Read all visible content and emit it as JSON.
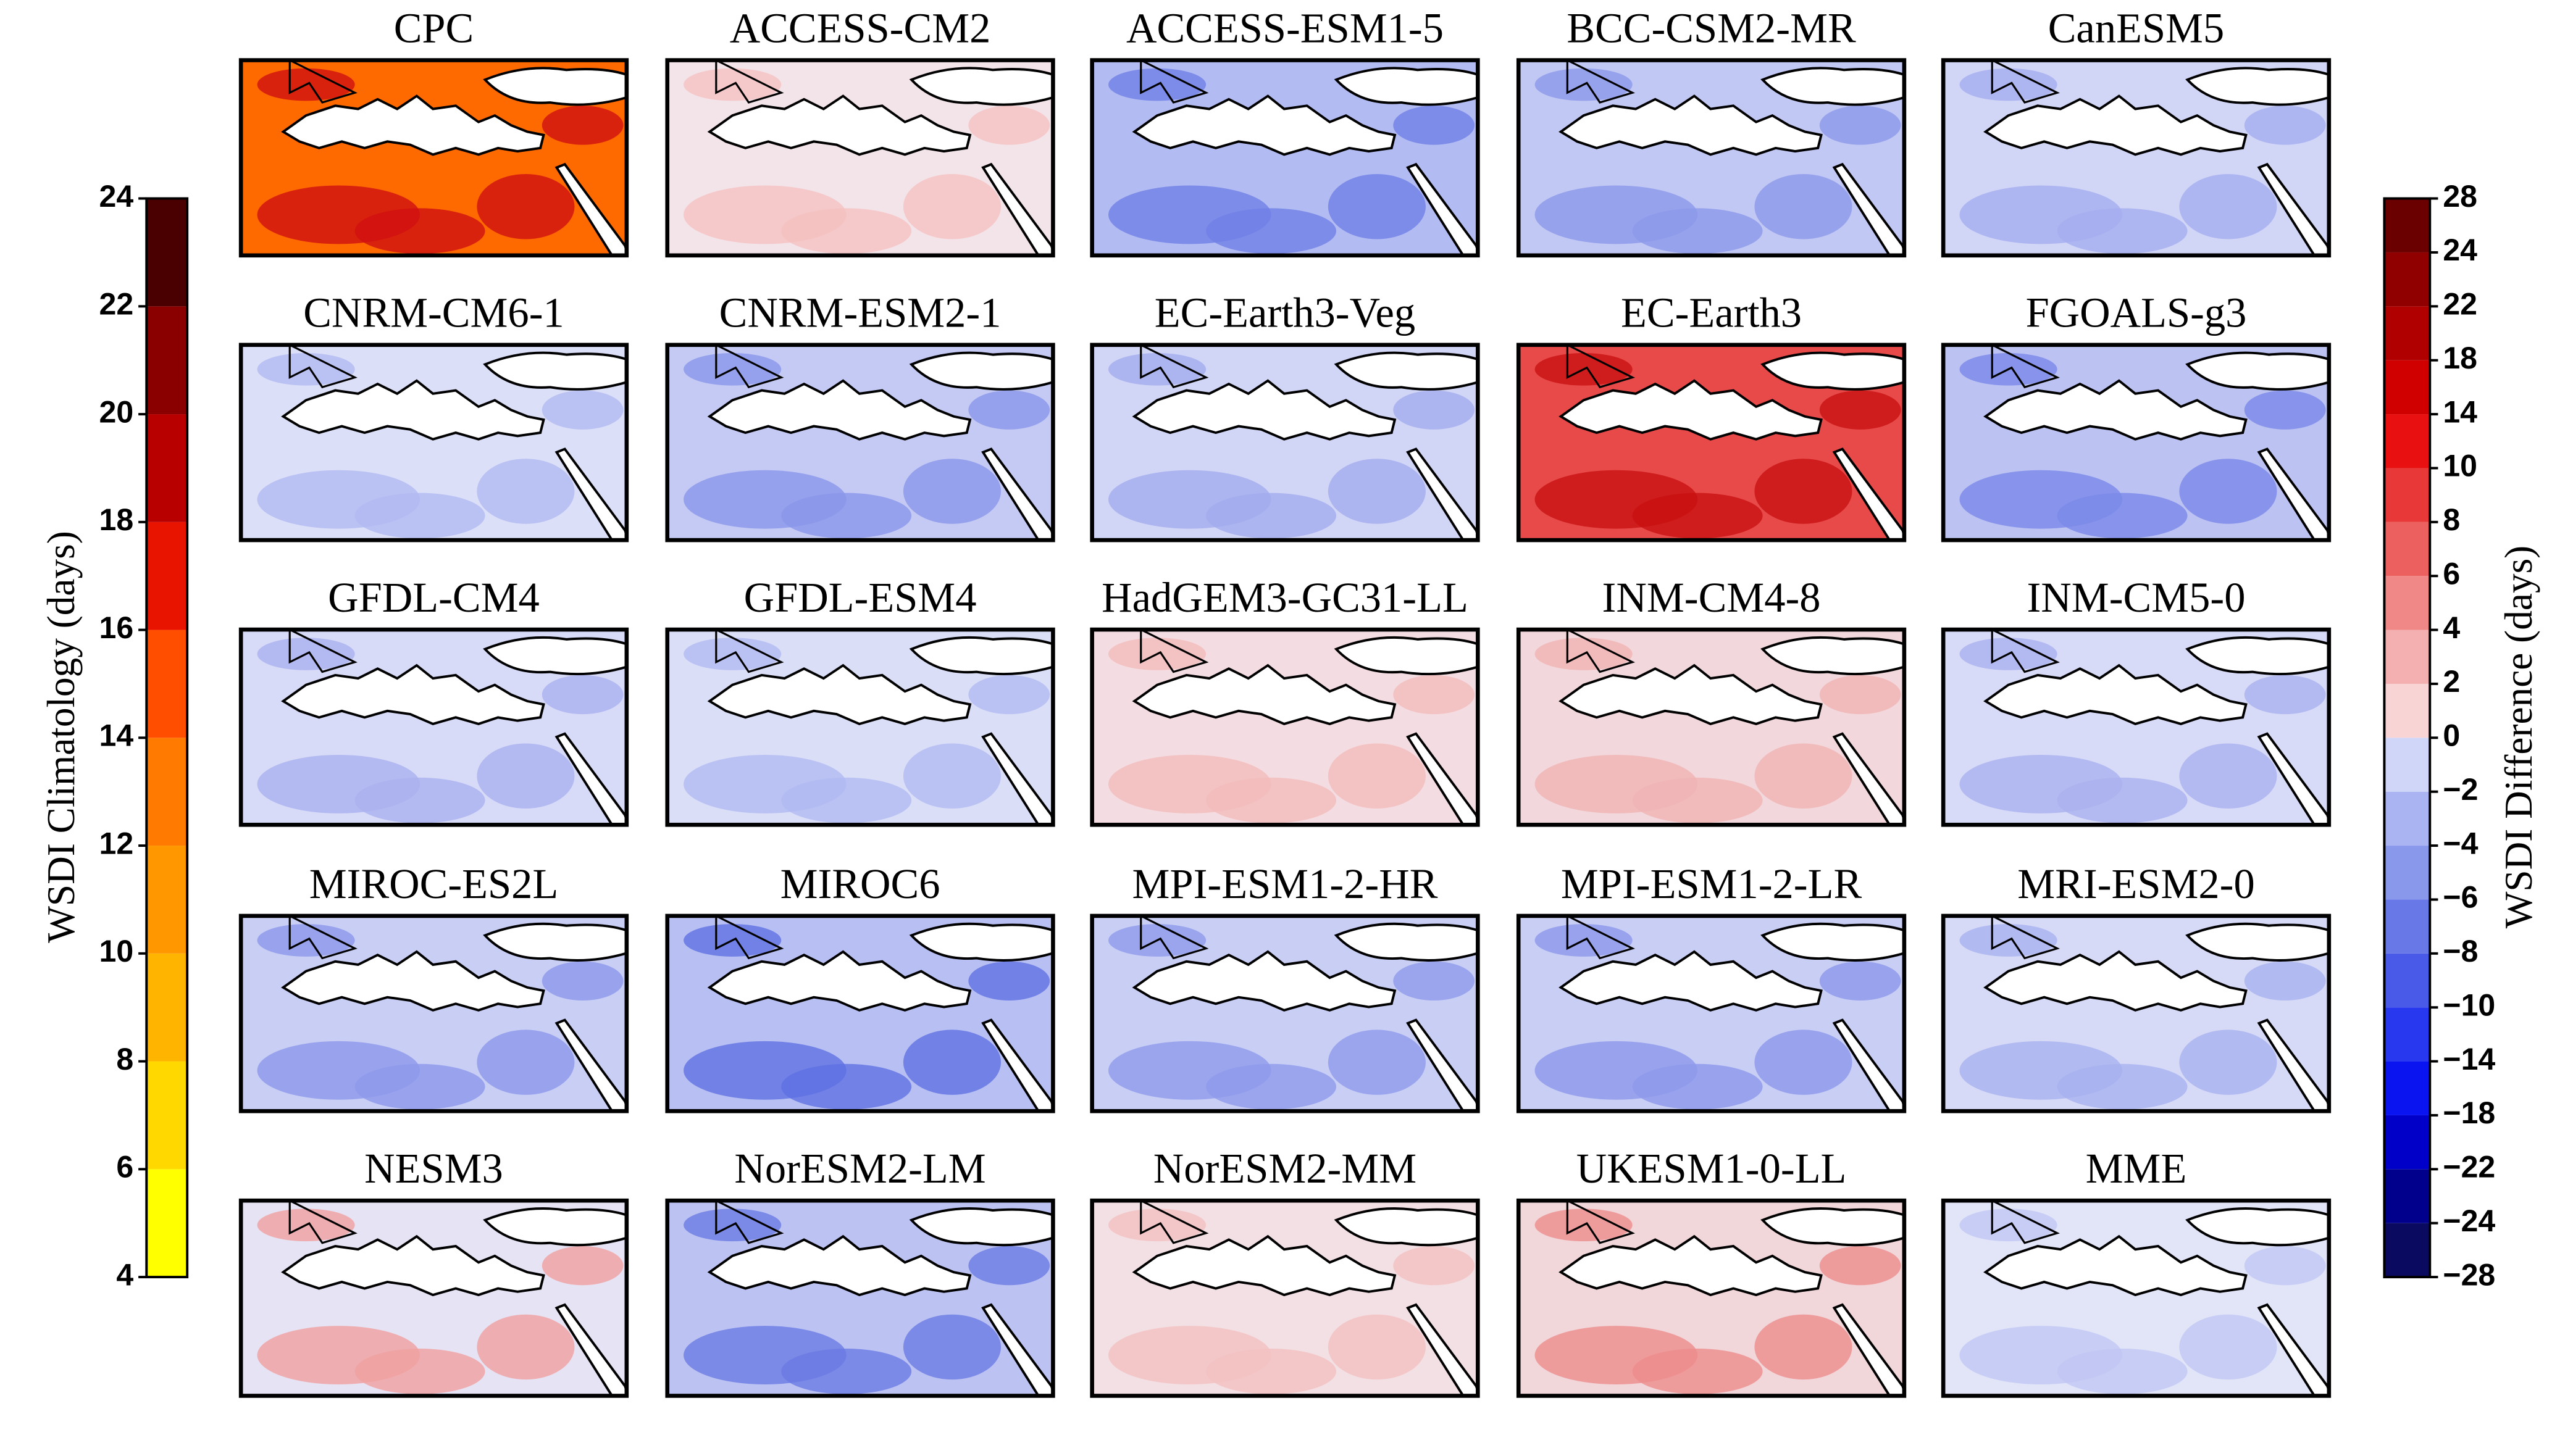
{
  "panels": [
    {
      "title": "CPC",
      "color": "#ff6a00",
      "accent": "#d01010"
    },
    {
      "title": "ACCESS-CM2",
      "color": "#f3e4ea",
      "accent": "#f5c0c0"
    },
    {
      "title": "ACCESS-ESM1-5",
      "color": "#b3bcf2",
      "accent": "#6f7fe6"
    },
    {
      "title": "BCC-CSM2-MR",
      "color": "#c2c8f4",
      "accent": "#8c98ea"
    },
    {
      "title": "CanESM5",
      "color": "#d2d6f6",
      "accent": "#a5aef0"
    },
    {
      "title": "CNRM-CM6-1",
      "color": "#dcdff8",
      "accent": "#b1b9f1"
    },
    {
      "title": "CNRM-ESM2-1",
      "color": "#c4caf4",
      "accent": "#8a96ea"
    },
    {
      "title": "EC-Earth3-Veg",
      "color": "#d2d6f6",
      "accent": "#a3adee"
    },
    {
      "title": "EC-Earth3",
      "color": "#e84a4a",
      "accent": "#c81010"
    },
    {
      "title": "FGOALS-g3",
      "color": "#bcc3f3",
      "accent": "#7a88e8"
    },
    {
      "title": "GFDL-CM4",
      "color": "#d8dbf7",
      "accent": "#aab2ef"
    },
    {
      "title": "GFDL-ESM4",
      "color": "#dadef7",
      "accent": "#b2baf1"
    },
    {
      "title": "HadGEM3-GC31-LL",
      "color": "#f4dde2",
      "accent": "#f2bcbc"
    },
    {
      "title": "INM-CM4-8",
      "color": "#f2d8dc",
      "accent": "#f0b4b4"
    },
    {
      "title": "INM-CM5-0",
      "color": "#d8dbf7",
      "accent": "#aab2ef"
    },
    {
      "title": "MIROC-ES2L",
      "color": "#c9cef5",
      "accent": "#8d99eb"
    },
    {
      "title": "MIROC6",
      "color": "#b8c0f3",
      "accent": "#5f70e2"
    },
    {
      "title": "MPI-ESM1-2-HR",
      "color": "#c9cef5",
      "accent": "#8f9beb"
    },
    {
      "title": "MPI-ESM1-2-LR",
      "color": "#c9cef5",
      "accent": "#8d99eb"
    },
    {
      "title": "MRI-ESM2-0",
      "color": "#d6daf7",
      "accent": "#a8b1ef"
    },
    {
      "title": "NESM3",
      "color": "#e6e4f4",
      "accent": "#f0a0a0"
    },
    {
      "title": "NorESM2-LM",
      "color": "#bcc3f3",
      "accent": "#6a7ae4"
    },
    {
      "title": "NorESM2-MM",
      "color": "#f3e0e4",
      "accent": "#f2c0c0"
    },
    {
      "title": "UKESM1-0-LL",
      "color": "#f1d6da",
      "accent": "#ee8c8c"
    },
    {
      "title": "MME",
      "color": "#e2e4f8",
      "accent": "#c1c7f3"
    }
  ],
  "left_colorbar": {
    "label": "WSDI Climatology (days)",
    "lim": [
      4,
      24
    ],
    "ticks": [
      4,
      6,
      8,
      10,
      12,
      14,
      16,
      18,
      20,
      22,
      24
    ],
    "colors": [
      "#ffff00",
      "#ffd800",
      "#ffb400",
      "#ff9800",
      "#ff7a00",
      "#ff4e00",
      "#e81400",
      "#b80000",
      "#8a0000",
      "#4a0000"
    ]
  },
  "right_colorbar": {
    "label": "WSDI Difference (days)",
    "ticks": [
      {
        "value": -28,
        "label": "−28"
      },
      {
        "value": -24,
        "label": "−24"
      },
      {
        "value": -22,
        "label": "−22"
      },
      {
        "value": -18,
        "label": "−18"
      },
      {
        "value": -14,
        "label": "−14"
      },
      {
        "value": -10,
        "label": "−10"
      },
      {
        "value": -8,
        "label": "−8"
      },
      {
        "value": -6,
        "label": "−6"
      },
      {
        "value": -4,
        "label": "−4"
      },
      {
        "value": -2,
        "label": "−2"
      },
      0,
      2,
      4,
      6,
      8,
      10,
      14,
      18,
      22,
      24,
      28
    ],
    "colors": [
      "#0a0a60",
      "#00008c",
      "#0000c8",
      "#0a14f0",
      "#2838ee",
      "#4a5ae8",
      "#6878e6",
      "#8a98ec",
      "#aab4f2",
      "#d0d6f8",
      "#f8d4d4",
      "#f4b0b0",
      "#f08888",
      "#ec6060",
      "#e83838",
      "#e81010",
      "#d00000",
      "#b00000",
      "#900000",
      "#6a0000"
    ]
  }
}
